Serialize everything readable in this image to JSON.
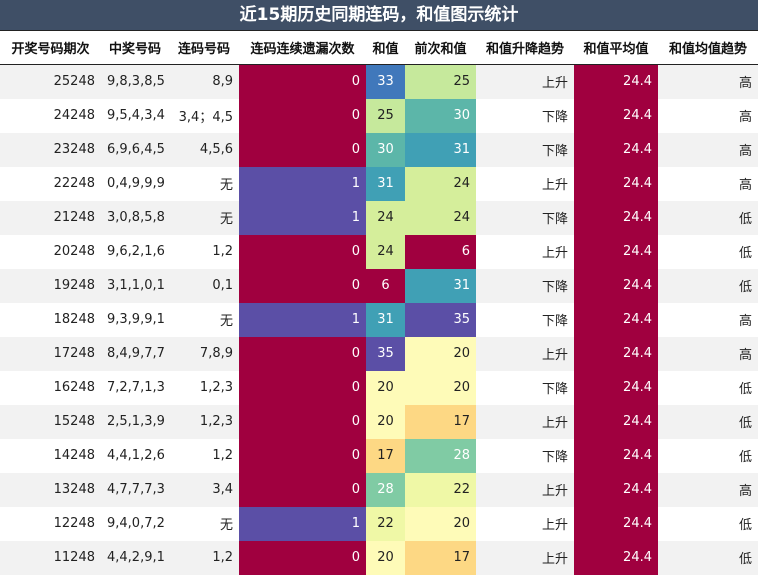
{
  "title": "近15期历史同期连码，和值图示统计",
  "headers": [
    "开奖号码期次",
    "中奖号码",
    "连码号码",
    "连码连续遗漏次数",
    "和值",
    "前次和值",
    "和值升降趋势",
    "和值平均值",
    "和值均值趋势"
  ],
  "colors": {
    "miss_0": "#a0003f",
    "miss_1": "#5b4fa6",
    "avg": "#a0003f",
    "sum_palette": {
      "6": "#a0003f",
      "17": "#fdd884",
      "20": "#fefbb8",
      "22": "#eff8a6",
      "24": "#d5ee9b",
      "25": "#c6e99c",
      "28": "#80cba4",
      "30": "#5cb6a9",
      "31": "#40a0b5",
      "33": "#4078bb",
      "35": "#5b4fa6"
    }
  },
  "rows": [
    {
      "period": "25248",
      "numbers": "9,8,3,8,5",
      "consec": "8,9",
      "miss": "0",
      "sum": "33",
      "prev_sum": "25",
      "trend": "上升",
      "avg": "24.4",
      "avg_trend": "高"
    },
    {
      "period": "24248",
      "numbers": "9,5,4,3,4",
      "consec": "3,4；4,5",
      "miss": "0",
      "sum": "25",
      "prev_sum": "30",
      "trend": "下降",
      "avg": "24.4",
      "avg_trend": "高"
    },
    {
      "period": "23248",
      "numbers": "6,9,6,4,5",
      "consec": "4,5,6",
      "miss": "0",
      "sum": "30",
      "prev_sum": "31",
      "trend": "下降",
      "avg": "24.4",
      "avg_trend": "高"
    },
    {
      "period": "22248",
      "numbers": "0,4,9,9,9",
      "consec": "无",
      "miss": "1",
      "sum": "31",
      "prev_sum": "24",
      "trend": "上升",
      "avg": "24.4",
      "avg_trend": "高"
    },
    {
      "period": "21248",
      "numbers": "3,0,8,5,8",
      "consec": "无",
      "miss": "1",
      "sum": "24",
      "prev_sum": "24",
      "trend": "下降",
      "avg": "24.4",
      "avg_trend": "低"
    },
    {
      "period": "20248",
      "numbers": "9,6,2,1,6",
      "consec": "1,2",
      "miss": "0",
      "sum": "24",
      "prev_sum": "6",
      "trend": "上升",
      "avg": "24.4",
      "avg_trend": "低"
    },
    {
      "period": "19248",
      "numbers": "3,1,1,0,1",
      "consec": "0,1",
      "miss": "0",
      "sum": "6",
      "prev_sum": "31",
      "trend": "下降",
      "avg": "24.4",
      "avg_trend": "低"
    },
    {
      "period": "18248",
      "numbers": "9,3,9,9,1",
      "consec": "无",
      "miss": "1",
      "sum": "31",
      "prev_sum": "35",
      "trend": "下降",
      "avg": "24.4",
      "avg_trend": "高"
    },
    {
      "period": "17248",
      "numbers": "8,4,9,7,7",
      "consec": "7,8,9",
      "miss": "0",
      "sum": "35",
      "prev_sum": "20",
      "trend": "上升",
      "avg": "24.4",
      "avg_trend": "高"
    },
    {
      "period": "16248",
      "numbers": "7,2,7,1,3",
      "consec": "1,2,3",
      "miss": "0",
      "sum": "20",
      "prev_sum": "20",
      "trend": "下降",
      "avg": "24.4",
      "avg_trend": "低"
    },
    {
      "period": "15248",
      "numbers": "2,5,1,3,9",
      "consec": "1,2,3",
      "miss": "0",
      "sum": "20",
      "prev_sum": "17",
      "trend": "上升",
      "avg": "24.4",
      "avg_trend": "低"
    },
    {
      "period": "14248",
      "numbers": "4,4,1,2,6",
      "consec": "1,2",
      "miss": "0",
      "sum": "17",
      "prev_sum": "28",
      "trend": "下降",
      "avg": "24.4",
      "avg_trend": "低"
    },
    {
      "period": "13248",
      "numbers": "4,7,7,7,3",
      "consec": "3,4",
      "miss": "0",
      "sum": "28",
      "prev_sum": "22",
      "trend": "上升",
      "avg": "24.4",
      "avg_trend": "高"
    },
    {
      "period": "12248",
      "numbers": "9,4,0,7,2",
      "consec": "无",
      "miss": "1",
      "sum": "22",
      "prev_sum": "20",
      "trend": "上升",
      "avg": "24.4",
      "avg_trend": "低"
    },
    {
      "period": "11248",
      "numbers": "4,4,2,9,1",
      "consec": "1,2",
      "miss": "0",
      "sum": "20",
      "prev_sum": "17",
      "trend": "上升",
      "avg": "24.4",
      "avg_trend": "低"
    }
  ]
}
